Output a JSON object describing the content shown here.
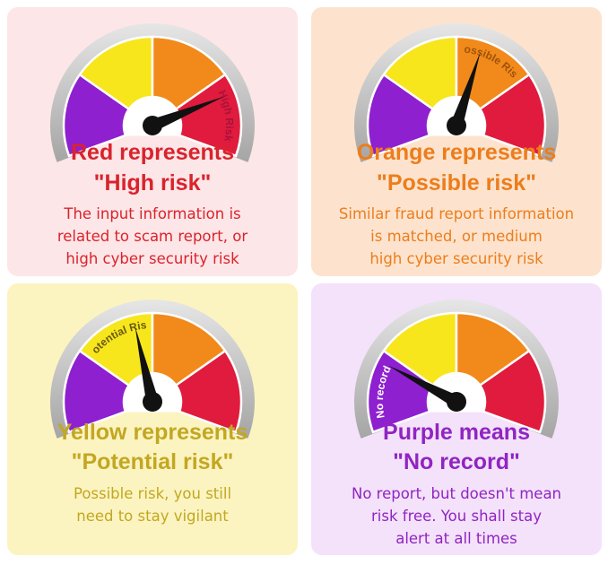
{
  "colors": {
    "purple": "#8e20cf",
    "yellow": "#f7e61c",
    "orange": "#f18a1a",
    "red": "#e01b3d",
    "needle": "#111111",
    "rim": "#b9b9b9"
  },
  "cards": [
    {
      "key": "red",
      "gauge_label": "High Risk",
      "needle_segment": "red",
      "title_line1": "Red represents",
      "title_line2": "\"High risk\"",
      "desc_lines": [
        "The input information is",
        "related to scam report, or",
        "high cyber security risk"
      ]
    },
    {
      "key": "orange",
      "gauge_label": "Possible Risk",
      "needle_segment": "orange",
      "title_line1": "Orange represents",
      "title_line2": "\"Possible risk\"",
      "desc_lines": [
        "Similar fraud report information",
        "is matched, or medium",
        "high cyber security risk"
      ]
    },
    {
      "key": "yellow",
      "gauge_label": "Potential Risk",
      "needle_segment": "yellow",
      "title_line1": "Yellow represents",
      "title_line2": "\"Potential risk\"",
      "desc_lines": [
        "Possible risk, you still",
        "need to stay vigilant"
      ]
    },
    {
      "key": "purple",
      "gauge_label": "No record",
      "needle_segment": "purple",
      "title_line1": "Purple means",
      "title_line2": "\"No record\"",
      "desc_lines": [
        "No report, but doesn't mean",
        "risk free. You shall stay",
        "alert at all times"
      ]
    }
  ]
}
